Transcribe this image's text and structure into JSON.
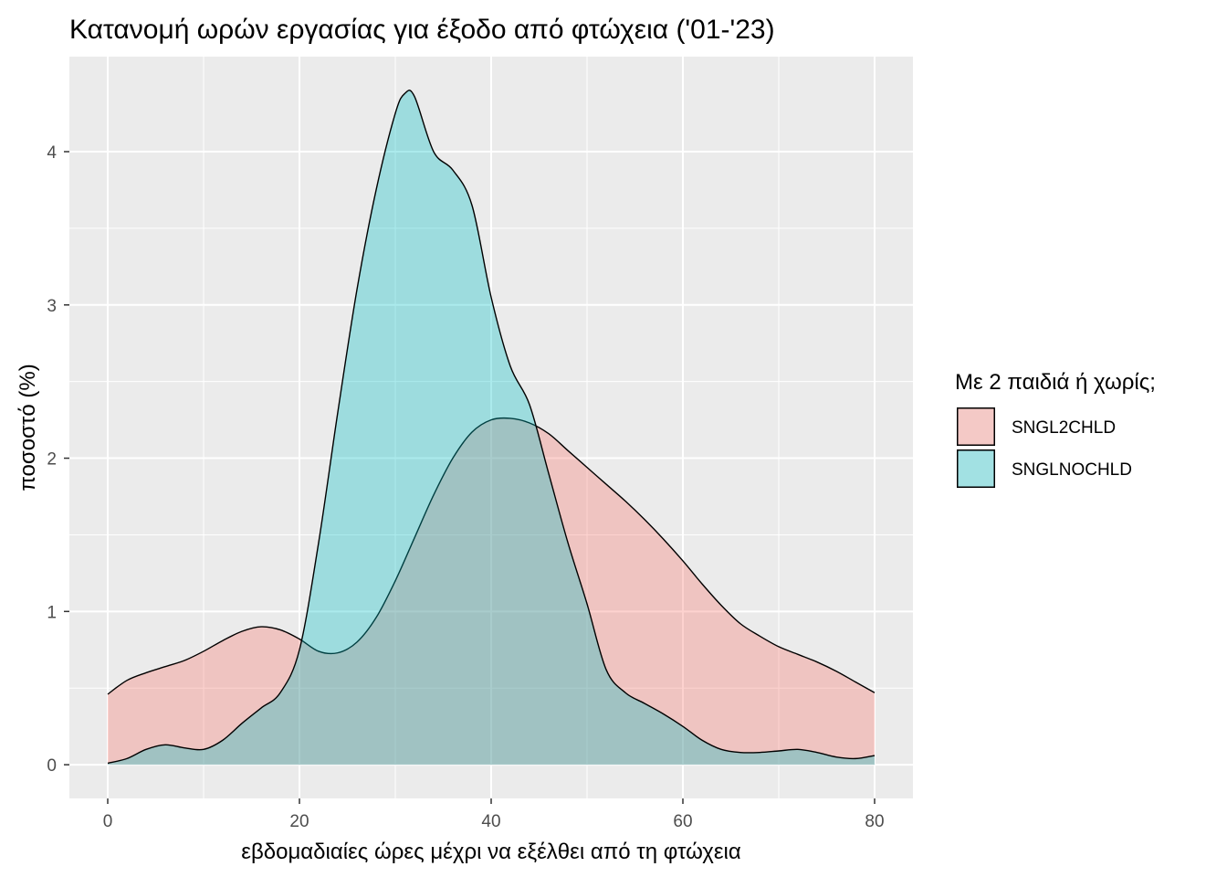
{
  "chart_data": {
    "type": "area",
    "title": "Κατανομή ωρών εργασίας για έξοδο από φτώχεια ('01-'23)",
    "xlabel": "εβδομαδιαίες ώρες μέχρι να εξέλθει από τη φτώχεια",
    "ylabel": "ποσοστό (%)",
    "xlim": [
      -4,
      84
    ],
    "ylim": [
      -0.22,
      4.62
    ],
    "x_ticks": [
      "0",
      "20",
      "40",
      "60",
      "80"
    ],
    "y_ticks": [
      "0",
      "1",
      "2",
      "3",
      "4"
    ],
    "grid": true,
    "legend": {
      "title": "Με 2 παιδιά ή χωρίς;",
      "position": "right"
    },
    "series": [
      {
        "name": "SNGL2CHLD",
        "fill": "#F8766D",
        "x": [
          0,
          2,
          4,
          6,
          8,
          10,
          12,
          14,
          16,
          18,
          20,
          22,
          24,
          26,
          28,
          30,
          32,
          34,
          36,
          38,
          40,
          42,
          44,
          46,
          48,
          50,
          52,
          54,
          56,
          58,
          60,
          62,
          64,
          66,
          68,
          70,
          72,
          74,
          76,
          78,
          80
        ],
        "y": [
          0.46,
          0.55,
          0.6,
          0.64,
          0.68,
          0.74,
          0.81,
          0.87,
          0.9,
          0.88,
          0.82,
          0.74,
          0.73,
          0.8,
          0.96,
          1.2,
          1.48,
          1.76,
          2.0,
          2.17,
          2.25,
          2.26,
          2.23,
          2.16,
          2.05,
          1.94,
          1.83,
          1.72,
          1.6,
          1.47,
          1.33,
          1.18,
          1.04,
          0.92,
          0.84,
          0.77,
          0.72,
          0.67,
          0.61,
          0.54,
          0.47
        ]
      },
      {
        "name": "SNGLNOCHLD",
        "fill": "#00BFC4",
        "x": [
          0,
          2,
          4,
          6,
          8,
          10,
          12,
          14,
          16,
          18,
          20,
          22,
          24,
          26,
          28,
          30,
          31,
          32,
          34,
          36,
          38,
          40,
          42,
          44,
          46,
          48,
          50,
          52,
          54,
          56,
          58,
          60,
          62,
          64,
          66,
          68,
          70,
          72,
          74,
          76,
          78,
          80
        ],
        "y": [
          0.01,
          0.04,
          0.1,
          0.13,
          0.11,
          0.1,
          0.16,
          0.27,
          0.37,
          0.47,
          0.75,
          1.45,
          2.3,
          3.1,
          3.75,
          4.25,
          4.38,
          4.36,
          4.0,
          3.88,
          3.65,
          3.05,
          2.6,
          2.35,
          1.9,
          1.45,
          1.05,
          0.62,
          0.47,
          0.4,
          0.33,
          0.25,
          0.16,
          0.1,
          0.08,
          0.08,
          0.09,
          0.1,
          0.08,
          0.05,
          0.04,
          0.06
        ]
      }
    ]
  }
}
